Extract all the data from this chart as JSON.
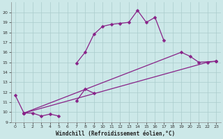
{
  "xlabel": "Windchill (Refroidissement éolien,°C)",
  "bg_color": "#cce8e8",
  "line_color": "#882288",
  "grid_color": "#aacccc",
  "xlim": [
    -0.5,
    23.5
  ],
  "ylim": [
    9,
    21
  ],
  "xticks": [
    0,
    1,
    2,
    3,
    4,
    5,
    6,
    7,
    8,
    9,
    10,
    11,
    12,
    13,
    14,
    15,
    16,
    17,
    18,
    19,
    20,
    21,
    22,
    23
  ],
  "yticks": [
    9,
    10,
    11,
    12,
    13,
    14,
    15,
    16,
    17,
    18,
    19,
    20
  ],
  "series": [
    {
      "segments": [
        {
          "x": [
            0,
            1,
            2,
            3,
            4,
            5
          ],
          "y": [
            11.7,
            9.9,
            9.9,
            9.6,
            9.8,
            9.6
          ]
        },
        {
          "x": [
            7,
            8,
            9
          ],
          "y": [
            11.1,
            12.3,
            11.9
          ]
        }
      ]
    },
    {
      "segments": [
        {
          "x": [
            7,
            8,
            9,
            10,
            11,
            12,
            13,
            14,
            15,
            16,
            17
          ],
          "y": [
            14.9,
            16.0,
            17.8,
            18.6,
            18.8,
            18.9,
            19.0,
            20.2,
            19.0,
            19.5,
            17.2
          ]
        }
      ]
    },
    {
      "segments": [
        {
          "x": [
            1,
            19,
            20,
            21,
            23
          ],
          "y": [
            9.9,
            16.0,
            15.6,
            15.0,
            15.1
          ]
        }
      ]
    },
    {
      "segments": [
        {
          "x": [
            1,
            22,
            23
          ],
          "y": [
            9.9,
            15.0,
            15.1
          ]
        }
      ]
    }
  ]
}
